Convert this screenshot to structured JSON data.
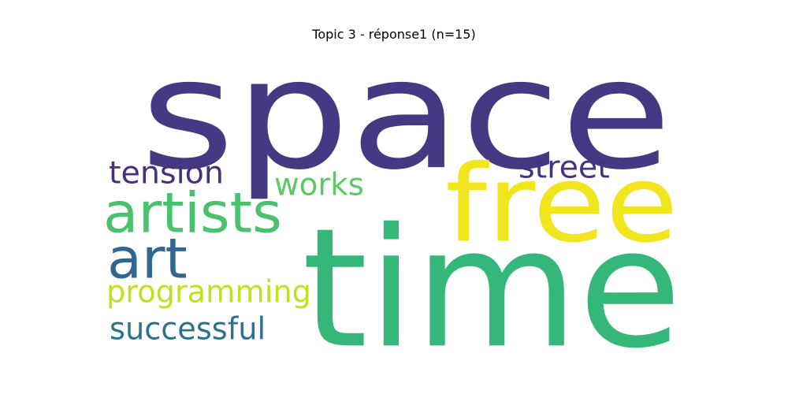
{
  "title": "Topic 3 - réponse1 (n=15)",
  "words": [
    {
      "text": "space",
      "color": "#443a83"
    },
    {
      "text": "time",
      "color": "#35b779"
    },
    {
      "text": "free",
      "color": "#f1e51d"
    },
    {
      "text": "artists",
      "color": "#4ac16d"
    },
    {
      "text": "art",
      "color": "#31668e"
    },
    {
      "text": "tension",
      "color": "#48307a"
    },
    {
      "text": "works",
      "color": "#5ec962"
    },
    {
      "text": "street",
      "color": "#463480"
    },
    {
      "text": "programming",
      "color": "#c2df23"
    },
    {
      "text": "successful",
      "color": "#2c728e"
    }
  ]
}
